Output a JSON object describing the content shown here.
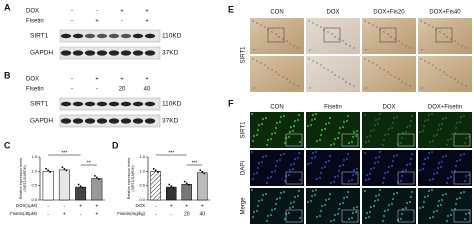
{
  "panel_a": {
    "label": "A",
    "rows": [
      {
        "name": "DOX",
        "signs": [
          "-",
          "-",
          "+",
          "+"
        ]
      },
      {
        "name": "Fisetin",
        "signs": [
          "-",
          "+",
          "-",
          "+"
        ]
      }
    ],
    "blots": [
      {
        "name": "SIRT1",
        "size": "110KD"
      },
      {
        "name": "GAPDH",
        "size": "37KD"
      }
    ]
  },
  "panel_b": {
    "label": "B",
    "rows": [
      {
        "name": "DOX",
        "signs": [
          "-",
          "+",
          "+",
          "+"
        ]
      },
      {
        "name": "Fisetin",
        "signs": [
          "-",
          "-",
          "20",
          "40"
        ]
      }
    ],
    "blots": [
      {
        "name": "SIRT1",
        "size": "110KD"
      },
      {
        "name": "GAPDH",
        "size": "37KD"
      }
    ]
  },
  "panel_e": {
    "label": "E",
    "columns": [
      "CON",
      "DOX",
      "DOX+Fis20",
      "DOX+Fis40"
    ],
    "row_label": "SIRT1"
  },
  "panel_f": {
    "label": "F",
    "columns": [
      "CON",
      "Fisetin",
      "DOX",
      "DOX+Fisetin"
    ],
    "rows": [
      "SIRT1",
      "DAPI",
      "Merge"
    ]
  },
  "chart_data": [
    {
      "type": "bar",
      "panel_label": "C",
      "y_label": [
        "Relative expression levels",
        "(SIRT1/GAPDH)"
      ],
      "annotations": [
        "***",
        "**"
      ],
      "condition_rows": [
        {
          "name": "DOX(1μM)",
          "signs": [
            "-",
            "-",
            "+",
            "+"
          ]
        },
        {
          "name": "Fisetin(40μM)",
          "signs": [
            "-",
            "+",
            "-",
            "+"
          ]
        }
      ],
      "values": [
        1.0,
        1.05,
        0.45,
        0.75
      ],
      "colors": [
        "#ffffff",
        "#e8e8e8",
        "#444444",
        "#999999"
      ],
      "ylim": [
        0,
        1.5
      ],
      "yticks": [
        {
          "value": 0,
          "label": "0.0"
        },
        {
          "value": 0.5,
          "label": "0.5"
        },
        {
          "value": 1,
          "label": "1.0"
        },
        {
          "value": 1.5,
          "label": "1.5"
        }
      ]
    },
    {
      "type": "bar",
      "panel_label": "D",
      "y_label": [
        "Relative expression levels",
        "(SIRT1/GAPDH)"
      ],
      "annotations": [
        "***",
        "***"
      ],
      "condition_rows": [
        {
          "name": "DOX",
          "signs": [
            "-",
            "+",
            "+",
            "+"
          ]
        },
        {
          "name": "Fisetin(mg/kg)",
          "signs": [
            "-",
            "-",
            "20",
            "40"
          ]
        }
      ],
      "values": [
        1.0,
        0.45,
        0.55,
        0.95
      ],
      "colors": [
        "#dddddd",
        "#333333",
        "#777777",
        "#bbbbbb"
      ],
      "ylim": [
        0,
        1.5
      ],
      "yticks": [
        {
          "value": 0,
          "label": "0.0"
        },
        {
          "value": 0.5,
          "label": "0.5"
        },
        {
          "value": 1,
          "label": "1.0"
        },
        {
          "value": 1.5,
          "label": "1.5"
        }
      ]
    }
  ]
}
